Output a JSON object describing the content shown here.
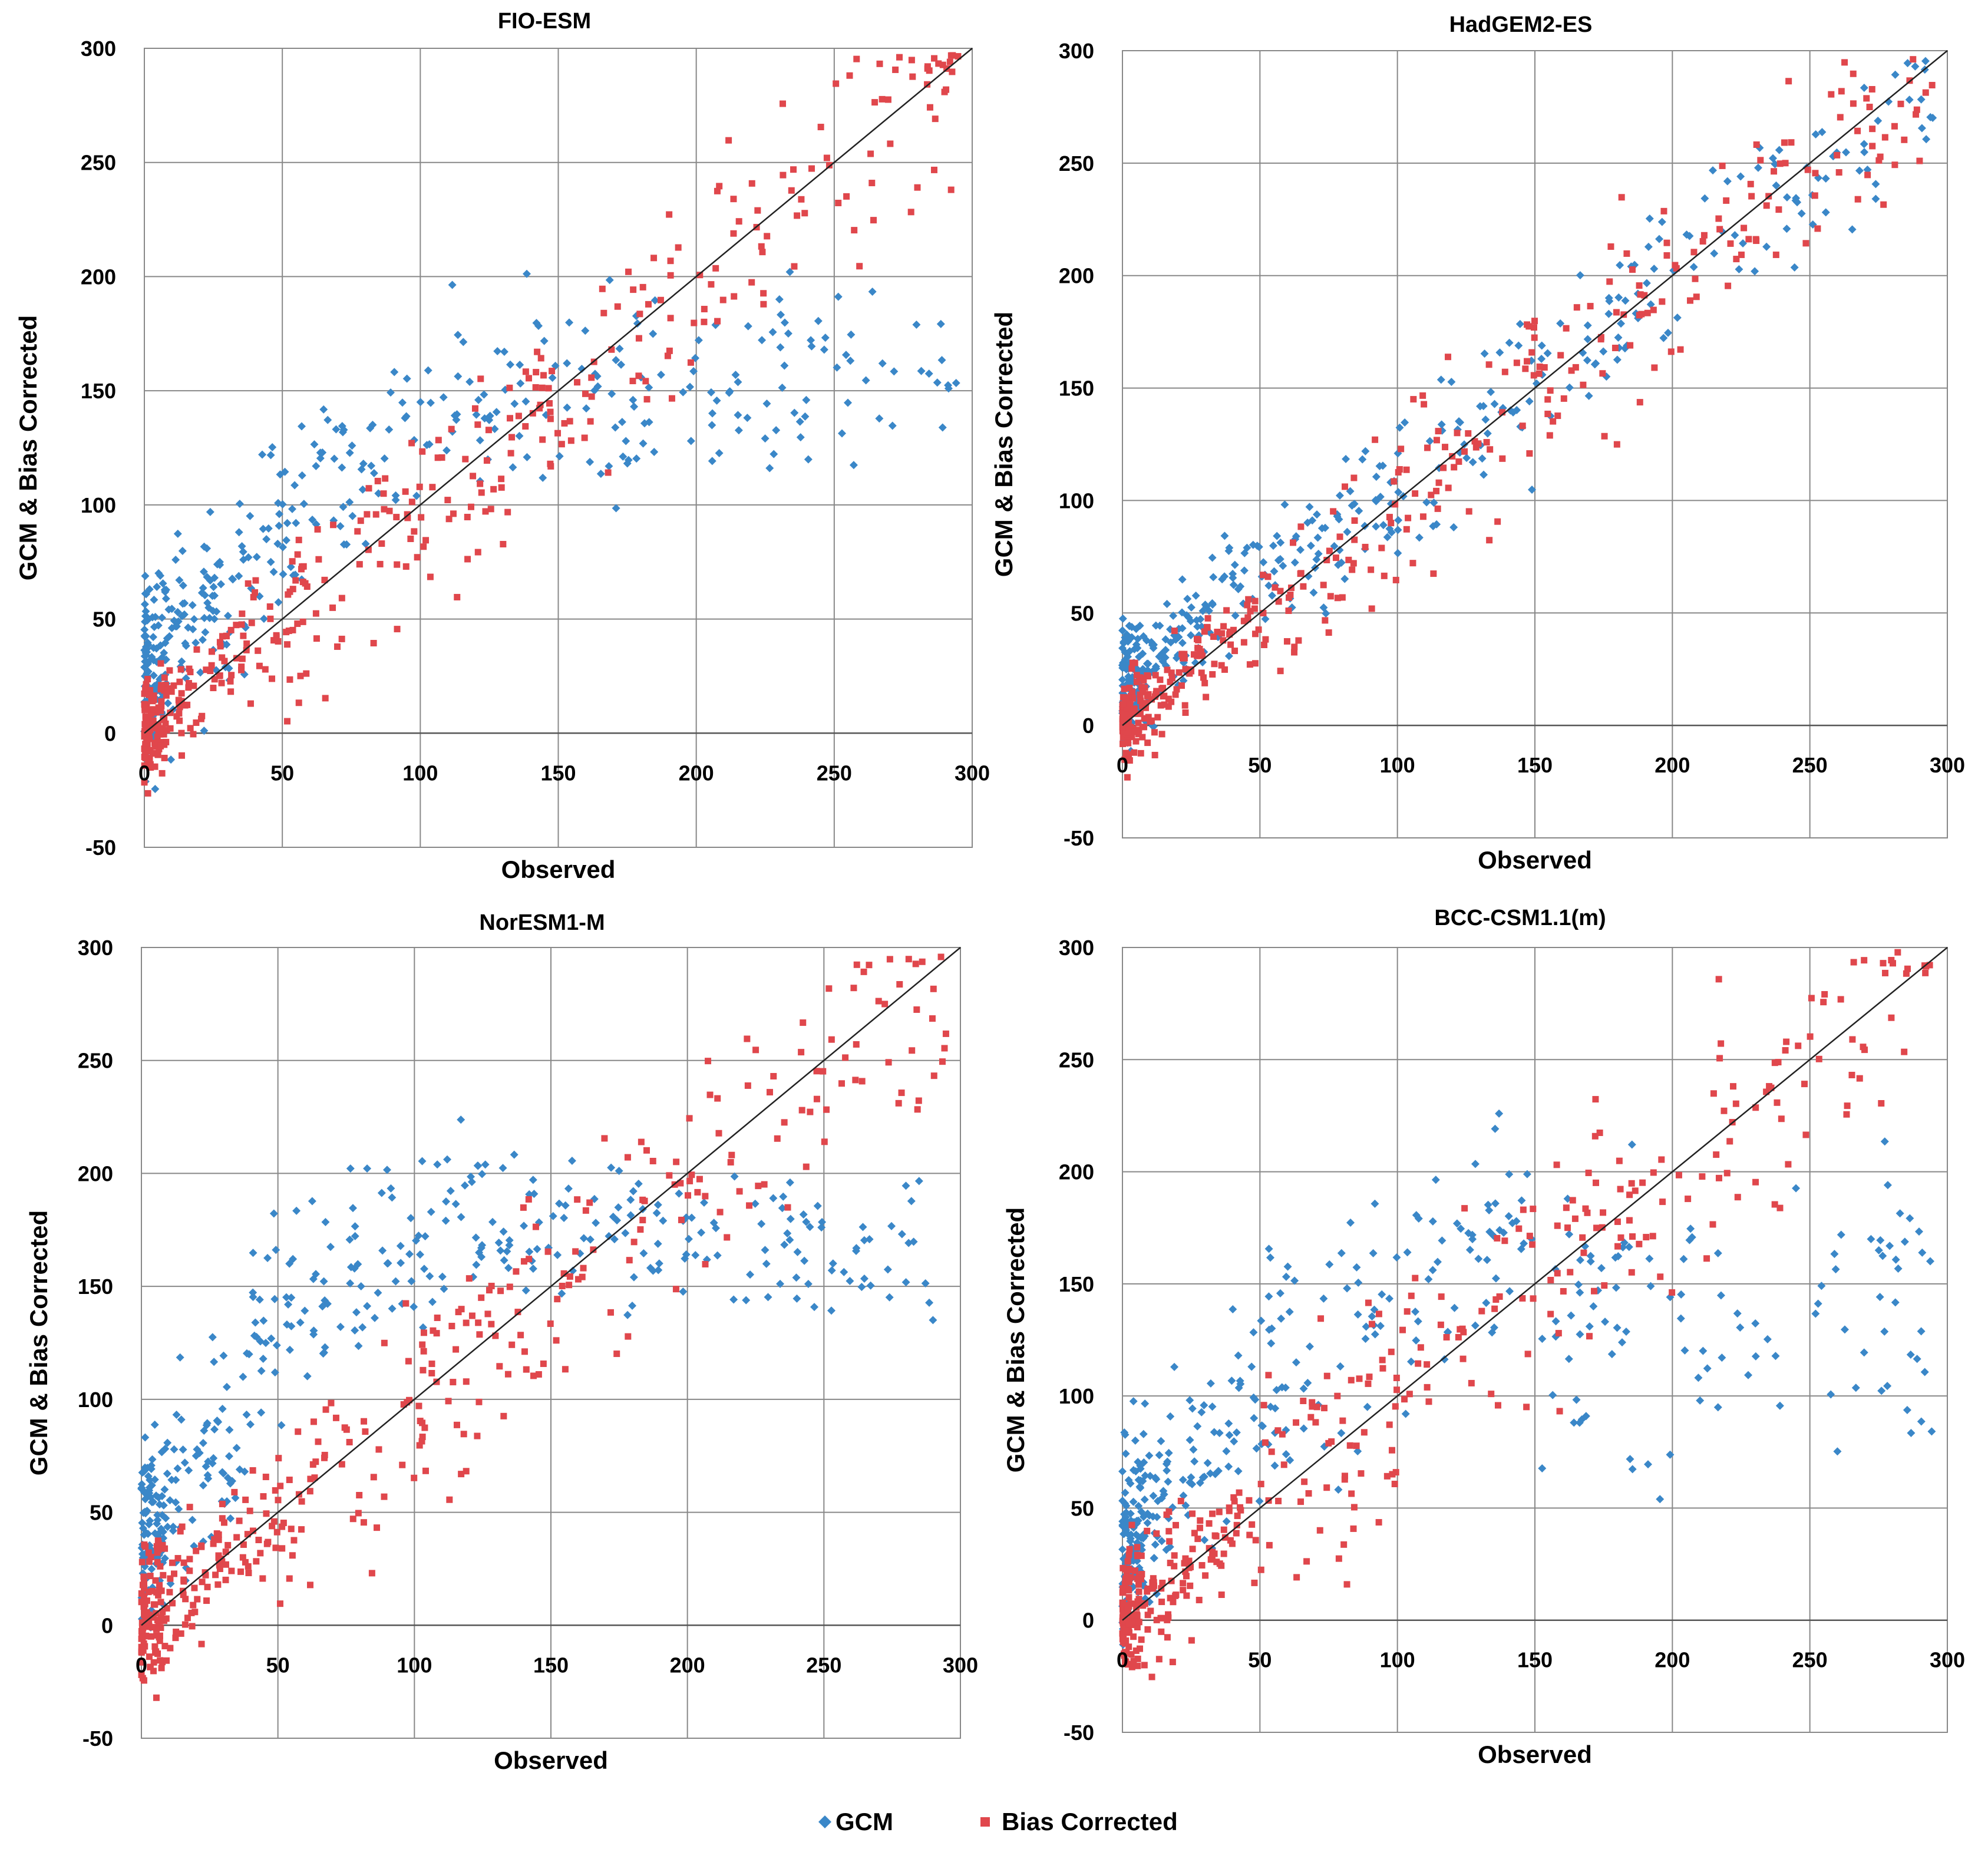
{
  "legend": [
    {
      "name": "GCM",
      "color": "#3a87c8",
      "marker": "diamond"
    },
    {
      "name": "Bias Corrected",
      "color": "#e0474c",
      "marker": "square"
    }
  ],
  "chart_data": [
    {
      "type": "scatter",
      "title": "FIO-ESM",
      "xlabel": "Observed",
      "ylabel": "GCM & Bias Corrected",
      "xlim": [
        0,
        300
      ],
      "ylim": [
        -50,
        300
      ],
      "xticks": [
        "0",
        "50",
        "100",
        "150",
        "200",
        "250",
        "300"
      ],
      "yticks": [
        "-50",
        "0",
        "50",
        "100",
        "150",
        "200",
        "250",
        "300"
      ],
      "reference_line": "1:1",
      "series": [
        {
          "name": "GCM",
          "profile": "fio_gcm",
          "count": 420
        },
        {
          "name": "Bias Corrected",
          "profile": "fio_bc",
          "count": 420
        }
      ]
    },
    {
      "type": "scatter",
      "title": "HadGEM2-ES",
      "xlabel": "Observed",
      "ylabel": "GCM & Bias Corrected",
      "xlim": [
        0,
        300
      ],
      "ylim": [
        -50,
        300
      ],
      "xticks": [
        "0",
        "50",
        "100",
        "150",
        "200",
        "250",
        "300"
      ],
      "yticks": [
        "-50",
        "0",
        "50",
        "100",
        "150",
        "200",
        "250",
        "300"
      ],
      "reference_line": "1:1",
      "series": [
        {
          "name": "GCM",
          "profile": "had_gcm",
          "count": 420
        },
        {
          "name": "Bias Corrected",
          "profile": "had_bc",
          "count": 420
        }
      ]
    },
    {
      "type": "scatter",
      "title": "NorESM1-M",
      "xlabel": "Observed",
      "ylabel": "GCM & Bias Corrected",
      "xlim": [
        0,
        300
      ],
      "ylim": [
        -50,
        300
      ],
      "xticks": [
        "0",
        "50",
        "100",
        "150",
        "200",
        "250",
        "300"
      ],
      "yticks": [
        "-50",
        "0",
        "50",
        "100",
        "150",
        "200",
        "250",
        "300"
      ],
      "reference_line": "1:1",
      "series": [
        {
          "name": "GCM",
          "profile": "nor_gcm",
          "count": 420
        },
        {
          "name": "Bias Corrected",
          "profile": "nor_bc",
          "count": 420
        }
      ]
    },
    {
      "type": "scatter",
      "title": "BCC-CSM1.1(m)",
      "xlabel": "Observed",
      "ylabel": "GCM & Bias Corrected",
      "xlim": [
        0,
        300
      ],
      "ylim": [
        -50,
        300
      ],
      "xticks": [
        "0",
        "50",
        "100",
        "150",
        "200",
        "250",
        "300"
      ],
      "yticks": [
        "-50",
        "0",
        "50",
        "100",
        "150",
        "200",
        "250",
        "300"
      ],
      "reference_line": "1:1",
      "series": [
        {
          "name": "GCM",
          "profile": "bcc_gcm",
          "count": 420
        },
        {
          "name": "Bias Corrected",
          "profile": "bcc_bc",
          "count": 420
        }
      ]
    }
  ]
}
